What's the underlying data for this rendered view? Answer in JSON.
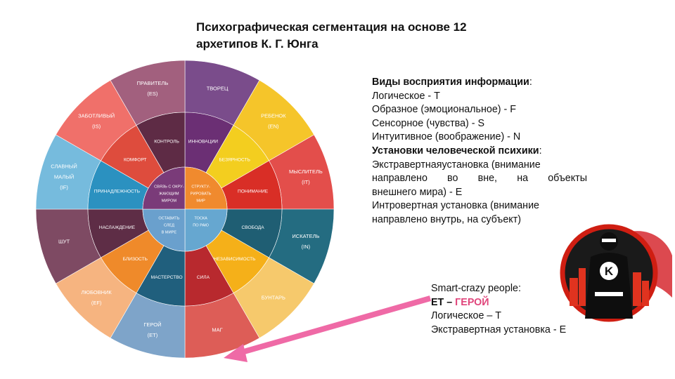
{
  "title": {
    "line1": "Психографическая сегментация на основе 12",
    "line2": "архетипов К. Г. Юнга"
  },
  "wheel": {
    "archetypes": [
      {
        "name": "ТВОРЕЦ",
        "code": "",
        "color": "#7a4c8b"
      },
      {
        "name": "РЕБЕНОК",
        "code": "(EN)",
        "color": "#f5c52a"
      },
      {
        "name": "МЫСЛИТЕЛЬ",
        "code": "(IT)",
        "color": "#e34e4b"
      },
      {
        "name": "ИСКАТЕЛЬ",
        "code": "(IN)",
        "color": "#246c81"
      },
      {
        "name": "БУНТАРЬ",
        "code": "",
        "color": "#f6c96c"
      },
      {
        "name": "МАГ",
        "code": "",
        "color": "#dd5d57"
      },
      {
        "name": "ГЕРОЙ",
        "code": "(ET)",
        "color": "#7ea4c9"
      },
      {
        "name": "ЛЮБОВНИК",
        "code": "(EF)",
        "color": "#f6b480"
      },
      {
        "name": "ШУТ",
        "code": "",
        "color": "#7e4a63"
      },
      {
        "name": "СЛАВНЫЙ\nМАЛЫЙ",
        "code": "(IF)",
        "color": "#76bbdd"
      },
      {
        "name": "ЗАБОТЛИВЫЙ",
        "code": "(IS)",
        "color": "#f0706a"
      },
      {
        "name": "ПРАВИТЕЛЬ",
        "code": "(ES)",
        "color": "#a2607e"
      }
    ],
    "values": [
      {
        "name": "ИННОВАЦИИ",
        "color": "#6b2f74"
      },
      {
        "name": "БЕЗЯРНОСТЬ",
        "color": "#f3ce1f"
      },
      {
        "name": "ПОНИМАНИЕ",
        "color": "#d92e26"
      },
      {
        "name": "СВОБОДА",
        "color": "#1f5e73"
      },
      {
        "name": "НЕЗАВИСИМОСТЬ",
        "color": "#f5b019"
      },
      {
        "name": "СИЛА",
        "color": "#b8292e"
      },
      {
        "name": "МАСТЕРСТВО",
        "color": "#205f7d"
      },
      {
        "name": "БЛИЗОСТЬ",
        "color": "#ef8a2a"
      },
      {
        "name": "НАСЛАЖДЕНИЕ",
        "color": "#5e2d46"
      },
      {
        "name": "ПРИНАДЛЕЖНОСТЬ",
        "color": "#2b91c0"
      },
      {
        "name": "КОМФОРТ",
        "color": "#de4c3d"
      },
      {
        "name": "КОНТРОЛЬ",
        "color": "#5e2b45"
      }
    ],
    "center": [
      {
        "text": "СТРУКТУ-\nРИРОВАТЬ\nМИР",
        "color": "#f08a2e"
      },
      {
        "text": "ТОСКА\n\nПО РАЮ",
        "color": "#66a7d0"
      },
      {
        "text": "ОСТАВИТЬ\nСЛЕД\nВ МИРЕ",
        "color": "#6aa0cd"
      },
      {
        "text": "СВЯЗЬ С ОКРУ-\nЖАЮЩИМ\nМИРОМ",
        "color": "#7a3b79"
      }
    ]
  },
  "info": {
    "line1_bold": "Виды восприятия информации",
    "line1_rest": ":",
    "line2": "Логическое - Т",
    "line3": "Образное (эмоциональное) - F",
    "line4": "Сенсорное (чувства) - S",
    "line5": "Интуитивное (воображение) - N",
    "line6_bold": "Установки человеческой психики",
    "line6_rest": ":",
    "line7": "Экстравертнаяустановка (внимание",
    "line8": "направлено во вне, на объекты",
    "line9": "внешнего мира) - Е",
    "line10": "Интровертная установка (внимание",
    "line11": "направлено внутрь, на субъект)"
  },
  "smart": {
    "line1": "Smart-crazy people:",
    "line2_prefix": "ET – ",
    "line2_accent": "ГЕРОЙ",
    "line3": "Логическое – Т",
    "line4": "Экстравертная установка - Е"
  },
  "badge": {
    "letter": "K"
  },
  "colors": {
    "arrow": "#ef6aa6",
    "accent": "#e0457b",
    "badge_ring": "#cf1e12",
    "cape": "#d8353c"
  }
}
